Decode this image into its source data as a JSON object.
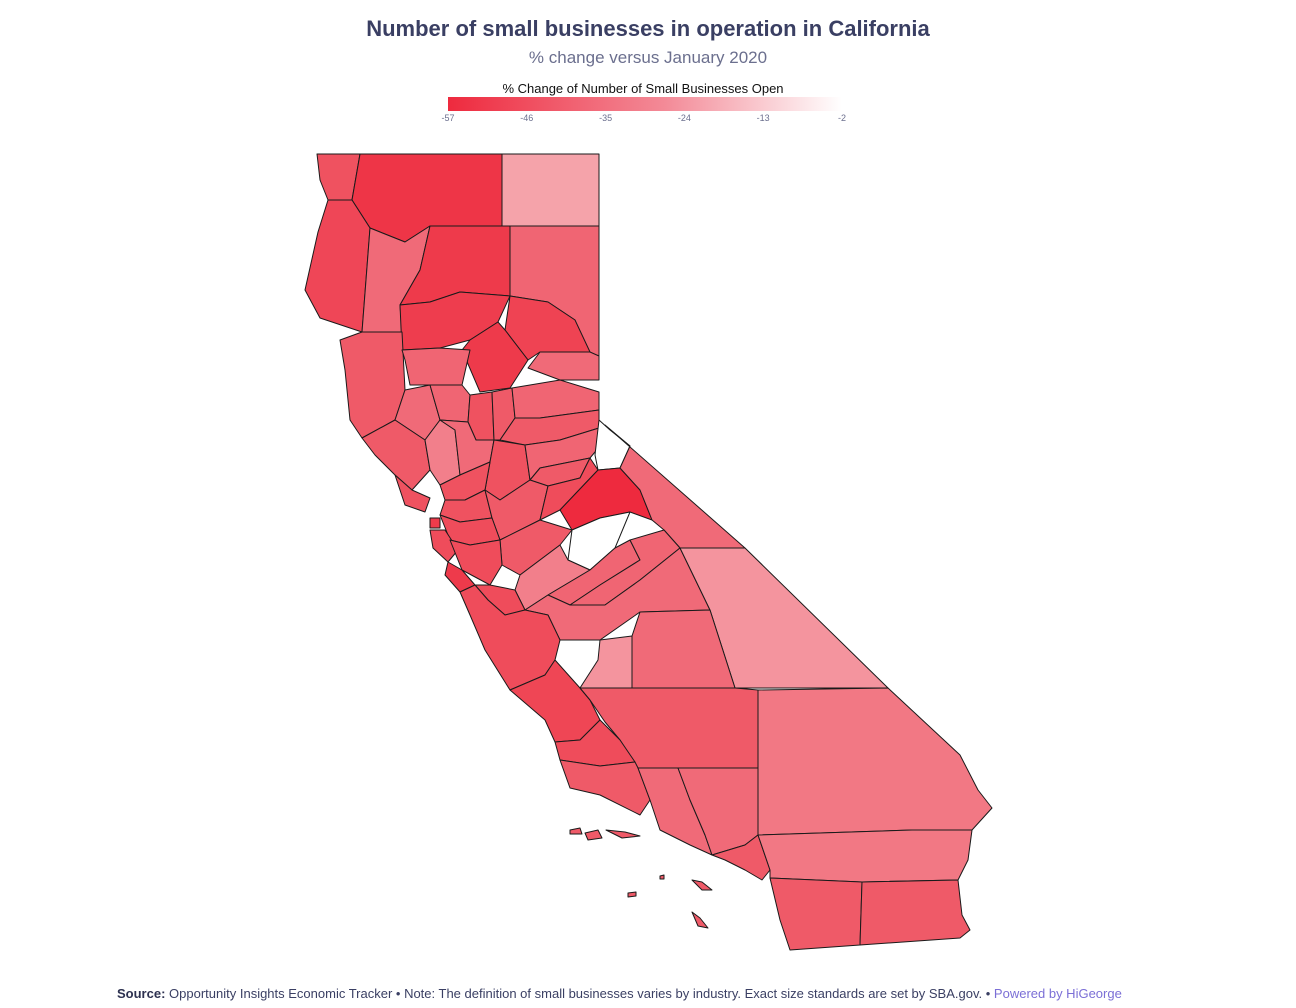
{
  "title": "Number of small businesses in operation in California",
  "subtitle": "% change versus January 2020",
  "legend": {
    "title": "% Change of Number of Small Businesses Open",
    "ticks": [
      "-57",
      "-46",
      "-35",
      "-24",
      "-13",
      "-2"
    ],
    "min": -57,
    "max": -2,
    "color_low": "#ee2a3e",
    "color_high": "#ffffff"
  },
  "footer": {
    "source_label": "Source:",
    "source_text": "Opportunity Insights Economic Tracker • Note: The definition of small businesses varies by industry. Exact size standards are set by SBA.gov. •",
    "powered": "Powered by HiGeorge"
  },
  "colors": {
    "title": "#3a3f63",
    "subtitle": "#6b6f8e",
    "link": "#7b6fd6",
    "border": "#1a1a1a"
  }
}
